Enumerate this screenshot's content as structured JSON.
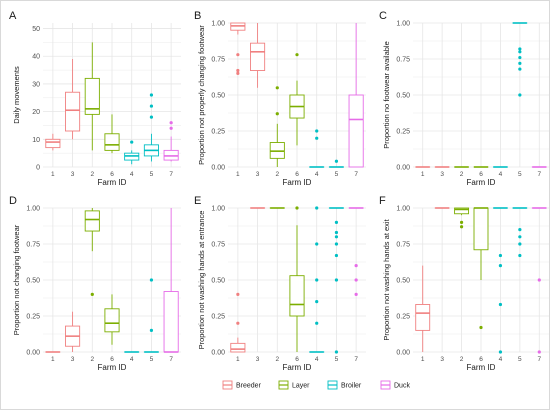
{
  "colors": {
    "Breeder": "#F08080",
    "Layer": "#7CAE00",
    "Broiler": "#00BFC4",
    "Duck": "#E66CE8",
    "grid": "#E6E6E6",
    "axis_text": "#4D4D4D"
  },
  "legend": {
    "position": "bottom",
    "items": [
      {
        "name": "Breeder",
        "color": "#F08080"
      },
      {
        "name": "Layer",
        "color": "#7CAE00"
      },
      {
        "name": "Broiler",
        "color": "#00BFC4"
      },
      {
        "name": "Duck",
        "color": "#E66CE8"
      }
    ]
  },
  "chart_data": [
    {
      "type": "boxplot",
      "panel": "A",
      "xlabel": "Farm ID",
      "ylabel": "Daily movements",
      "ylim": [
        0,
        52
      ],
      "yticks": [
        0,
        10,
        20,
        30,
        40,
        50
      ],
      "ytick_labels": [
        "0",
        "10",
        "20",
        "30",
        "40",
        "50"
      ],
      "categories": [
        "1",
        "3",
        "2",
        "6",
        "4",
        "5",
        "7"
      ],
      "groups": [
        "Breeder",
        "Breeder",
        "Layer",
        "Layer",
        "Broiler",
        "Broiler",
        "Duck"
      ],
      "boxes": [
        {
          "min": 6,
          "q1": 7,
          "median": 9,
          "q3": 10,
          "max": 12,
          "outliers": []
        },
        {
          "min": 10,
          "q1": 13,
          "median": 20.5,
          "q3": 27,
          "max": 39,
          "outliers": []
        },
        {
          "min": 6,
          "q1": 19,
          "median": 21,
          "q3": 32,
          "max": 45,
          "outliers": []
        },
        {
          "min": 5,
          "q1": 6,
          "median": 8,
          "q3": 12,
          "max": 19,
          "outliers": []
        },
        {
          "min": 1,
          "q1": 2.5,
          "median": 4,
          "q3": 5,
          "max": 6,
          "outliers": [
            9
          ]
        },
        {
          "min": 2,
          "q1": 4,
          "median": 6,
          "q3": 8,
          "max": 12,
          "outliers": [
            18,
            22,
            26
          ]
        },
        {
          "min": 2,
          "q1": 2.5,
          "median": 4,
          "q3": 6,
          "max": 11,
          "outliers": [
            14,
            16
          ]
        }
      ]
    },
    {
      "type": "boxplot",
      "panel": "B",
      "xlabel": "Farm ID",
      "ylabel": "Proportion not properly changing footwear",
      "ylim": [
        0,
        1
      ],
      "yticks": [
        0,
        0.25,
        0.5,
        0.75,
        1
      ],
      "ytick_labels": [
        "0.00",
        "0.25",
        "0.50",
        "0.75",
        "1.00"
      ],
      "categories": [
        "1",
        "3",
        "2",
        "6",
        "4",
        "5",
        "7"
      ],
      "groups": [
        "Breeder",
        "Breeder",
        "Layer",
        "Layer",
        "Broiler",
        "Broiler",
        "Duck"
      ],
      "boxes": [
        {
          "min": 0.92,
          "q1": 0.95,
          "median": 0.98,
          "q3": 1.0,
          "max": 1.0,
          "outliers": [
            0.65,
            0.67,
            0.78
          ]
        },
        {
          "min": 0.55,
          "q1": 0.67,
          "median": 0.8,
          "q3": 0.86,
          "max": 1.0,
          "outliers": []
        },
        {
          "min": 0.0,
          "q1": 0.06,
          "median": 0.11,
          "q3": 0.17,
          "max": 0.3,
          "outliers": [
            0.37,
            0.55
          ]
        },
        {
          "min": 0.15,
          "q1": 0.34,
          "median": 0.42,
          "q3": 0.5,
          "max": 0.6,
          "outliers": [
            0.78
          ]
        },
        {
          "min": 0.0,
          "q1": 0.0,
          "median": 0.0,
          "q3": 0.0,
          "max": 0.0,
          "outliers": [
            0.2,
            0.25
          ]
        },
        {
          "min": 0.0,
          "q1": 0.0,
          "median": 0.0,
          "q3": 0.0,
          "max": 0.0,
          "outliers": [
            0.04
          ]
        },
        {
          "min": 0.0,
          "q1": 0.0,
          "median": 0.33,
          "q3": 0.5,
          "max": 1.0,
          "outliers": []
        }
      ]
    },
    {
      "type": "boxplot",
      "panel": "C",
      "xlabel": "Farm ID",
      "ylabel": "Proportion no footwear available",
      "ylim": [
        0,
        1
      ],
      "yticks": [
        0,
        0.25,
        0.5,
        0.75,
        1
      ],
      "ytick_labels": [
        "0.00",
        "0.25",
        "0.50",
        "0.75",
        "1.00"
      ],
      "categories": [
        "1",
        "3",
        "2",
        "6",
        "4",
        "5",
        "7"
      ],
      "groups": [
        "Breeder",
        "Breeder",
        "Layer",
        "Layer",
        "Broiler",
        "Broiler",
        "Duck"
      ],
      "boxes": [
        {
          "min": 0,
          "q1": 0,
          "median": 0,
          "q3": 0,
          "max": 0,
          "outliers": []
        },
        {
          "min": 0,
          "q1": 0,
          "median": 0,
          "q3": 0,
          "max": 0,
          "outliers": []
        },
        {
          "min": 0,
          "q1": 0,
          "median": 0,
          "q3": 0,
          "max": 0,
          "outliers": []
        },
        {
          "min": 0,
          "q1": 0,
          "median": 0,
          "q3": 0,
          "max": 0,
          "outliers": []
        },
        {
          "min": 0,
          "q1": 0,
          "median": 0,
          "q3": 0,
          "max": 0,
          "outliers": []
        },
        {
          "min": 1,
          "q1": 1,
          "median": 1,
          "q3": 1,
          "max": 1,
          "outliers": [
            0.5,
            0.68,
            0.72,
            0.76,
            0.8,
            0.82
          ]
        },
        {
          "min": 0,
          "q1": 0,
          "median": 0,
          "q3": 0,
          "max": 0,
          "outliers": []
        }
      ]
    },
    {
      "type": "boxplot",
      "panel": "D",
      "xlabel": "Farm ID",
      "ylabel": "Proportion not changing footwear",
      "ylim": [
        0,
        1
      ],
      "yticks": [
        0,
        0.25,
        0.5,
        0.75,
        1
      ],
      "ytick_labels": [
        "0.00",
        "0.25",
        "0.50",
        "0.75",
        "1.00"
      ],
      "categories": [
        "1",
        "3",
        "2",
        "6",
        "4",
        "5",
        "7"
      ],
      "groups": [
        "Breeder",
        "Breeder",
        "Layer",
        "Layer",
        "Broiler",
        "Broiler",
        "Duck"
      ],
      "boxes": [
        {
          "min": 0,
          "q1": 0,
          "median": 0,
          "q3": 0,
          "max": 0,
          "outliers": []
        },
        {
          "min": 0,
          "q1": 0.04,
          "median": 0.11,
          "q3": 0.18,
          "max": 0.28,
          "outliers": []
        },
        {
          "min": 0.7,
          "q1": 0.84,
          "median": 0.92,
          "q3": 0.98,
          "max": 1.0,
          "outliers": [
            0.4
          ]
        },
        {
          "min": 0.05,
          "q1": 0.14,
          "median": 0.2,
          "q3": 0.3,
          "max": 0.4,
          "outliers": []
        },
        {
          "min": 0,
          "q1": 0,
          "median": 0,
          "q3": 0,
          "max": 0,
          "outliers": []
        },
        {
          "min": 0,
          "q1": 0,
          "median": 0,
          "q3": 0,
          "max": 0,
          "outliers": [
            0.15,
            0.5
          ]
        },
        {
          "min": 0,
          "q1": 0,
          "median": 0,
          "q3": 0.42,
          "max": 1.0,
          "outliers": []
        }
      ]
    },
    {
      "type": "boxplot",
      "panel": "E",
      "xlabel": "Farm ID",
      "ylabel": "Proportion not washing hands at entrance",
      "ylim": [
        0,
        1
      ],
      "yticks": [
        0,
        0.25,
        0.5,
        0.75,
        1
      ],
      "ytick_labels": [
        "0.00",
        "0.25",
        "0.50",
        "0.75",
        "1.00"
      ],
      "categories": [
        "1",
        "3",
        "2",
        "6",
        "4",
        "5",
        "7"
      ],
      "groups": [
        "Breeder",
        "Breeder",
        "Layer",
        "Layer",
        "Broiler",
        "Broiler",
        "Duck"
      ],
      "boxes": [
        {
          "min": 0,
          "q1": 0,
          "median": 0.02,
          "q3": 0.06,
          "max": 0.1,
          "outliers": [
            0.2,
            0.4
          ]
        },
        {
          "min": 1,
          "q1": 1,
          "median": 1,
          "q3": 1,
          "max": 1,
          "outliers": []
        },
        {
          "min": 1,
          "q1": 1,
          "median": 1,
          "q3": 1,
          "max": 1,
          "outliers": []
        },
        {
          "min": 0,
          "q1": 0.25,
          "median": 0.33,
          "q3": 0.53,
          "max": 0.88,
          "outliers": [
            1.0
          ]
        },
        {
          "min": 0,
          "q1": 0,
          "median": 0,
          "q3": 0,
          "max": 0,
          "outliers": [
            0.2,
            0.35,
            0.5,
            0.75,
            1.0
          ]
        },
        {
          "min": 1,
          "q1": 1,
          "median": 1,
          "q3": 1,
          "max": 1,
          "outliers": [
            0.0,
            0.5,
            0.67,
            0.75,
            0.8,
            0.83,
            0.9
          ]
        },
        {
          "min": 1,
          "q1": 1,
          "median": 1,
          "q3": 1,
          "max": 1,
          "outliers": [
            0.4,
            0.5,
            0.6
          ]
        }
      ]
    },
    {
      "type": "boxplot",
      "panel": "F",
      "xlabel": "Farm ID",
      "ylabel": "Proportion not washing hands at exit",
      "ylim": [
        0,
        1
      ],
      "yticks": [
        0,
        0.25,
        0.5,
        0.75,
        1
      ],
      "ytick_labels": [
        "0.00",
        "0.25",
        "0.50",
        "0.75",
        "1.00"
      ],
      "categories": [
        "1",
        "3",
        "2",
        "6",
        "4",
        "5",
        "7"
      ],
      "groups": [
        "Breeder",
        "Breeder",
        "Layer",
        "Layer",
        "Broiler",
        "Broiler",
        "Duck"
      ],
      "boxes": [
        {
          "min": 0,
          "q1": 0.15,
          "median": 0.27,
          "q3": 0.33,
          "max": 0.6,
          "outliers": []
        },
        {
          "min": 1,
          "q1": 1,
          "median": 1,
          "q3": 1,
          "max": 1,
          "outliers": []
        },
        {
          "min": 0.95,
          "q1": 0.96,
          "median": 0.99,
          "q3": 1.0,
          "max": 1.0,
          "outliers": [
            0.87,
            0.9
          ]
        },
        {
          "min": 0.5,
          "q1": 0.71,
          "median": 1.0,
          "q3": 1.0,
          "max": 1.0,
          "outliers": [
            0.17
          ]
        },
        {
          "min": 1,
          "q1": 1,
          "median": 1,
          "q3": 1,
          "max": 1,
          "outliers": [
            0.0,
            0.33,
            0.6,
            0.67
          ]
        },
        {
          "min": 1,
          "q1": 1,
          "median": 1,
          "q3": 1,
          "max": 1,
          "outliers": [
            0.67,
            0.75,
            0.8,
            0.85
          ]
        },
        {
          "min": 1,
          "q1": 1,
          "median": 1,
          "q3": 1,
          "max": 1,
          "outliers": [
            0.0,
            0.5
          ]
        }
      ]
    }
  ]
}
